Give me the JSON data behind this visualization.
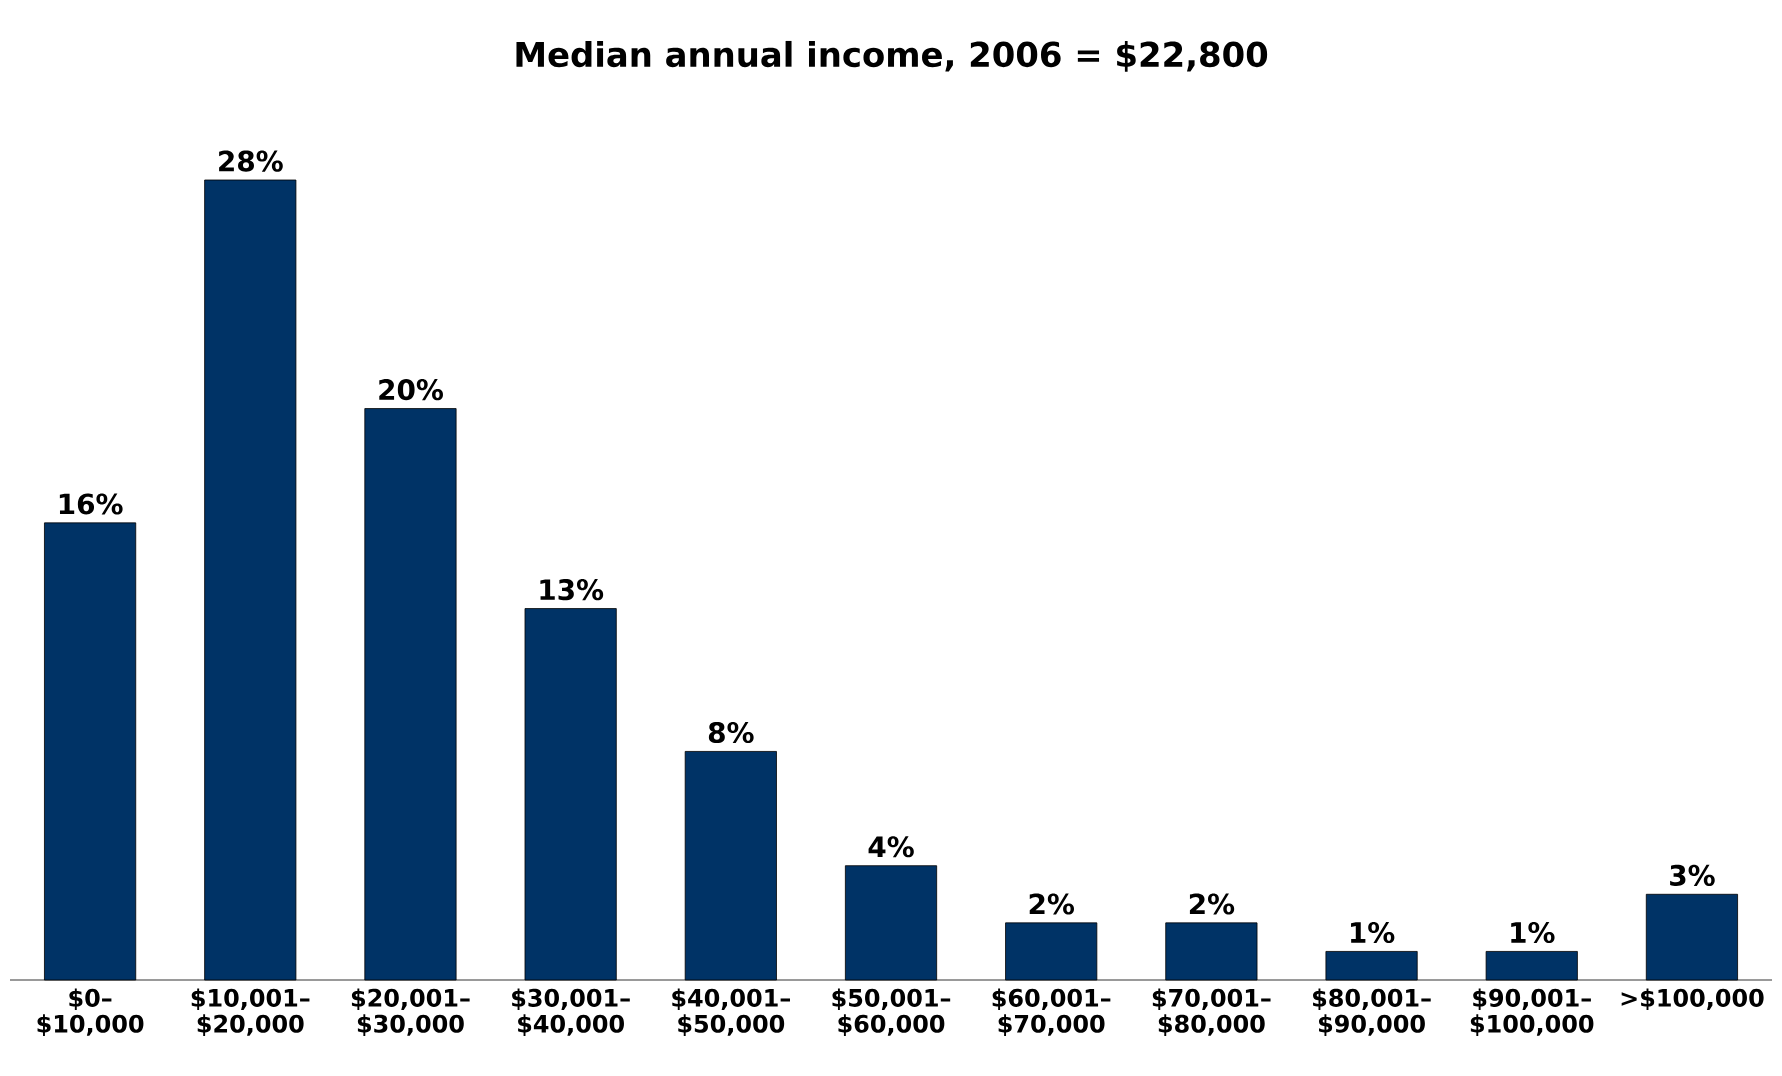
{
  "chart_data": {
    "type": "bar",
    "title": "Median annual income, 2006 = $22,800",
    "categories": [
      "$0– $10,000",
      "$10,001– $20,000",
      "$20,001– $30,000",
      "$30,001– $40,000",
      "$40,001– $50,000",
      "$50,001– $60,000",
      "$60,001– $70,000",
      "$70,001– $80,000",
      "$80,001– $90,000",
      "$90,001– $100,000",
      ">$100,000"
    ],
    "values": [
      16,
      28,
      20,
      13,
      8,
      4,
      2,
      2,
      1,
      1,
      3
    ],
    "value_labels": [
      "16%",
      "28%",
      "20%",
      "13%",
      "8%",
      "4%",
      "2%",
      "2%",
      "1%",
      "1%",
      "3%"
    ],
    "color": "#003366"
  }
}
